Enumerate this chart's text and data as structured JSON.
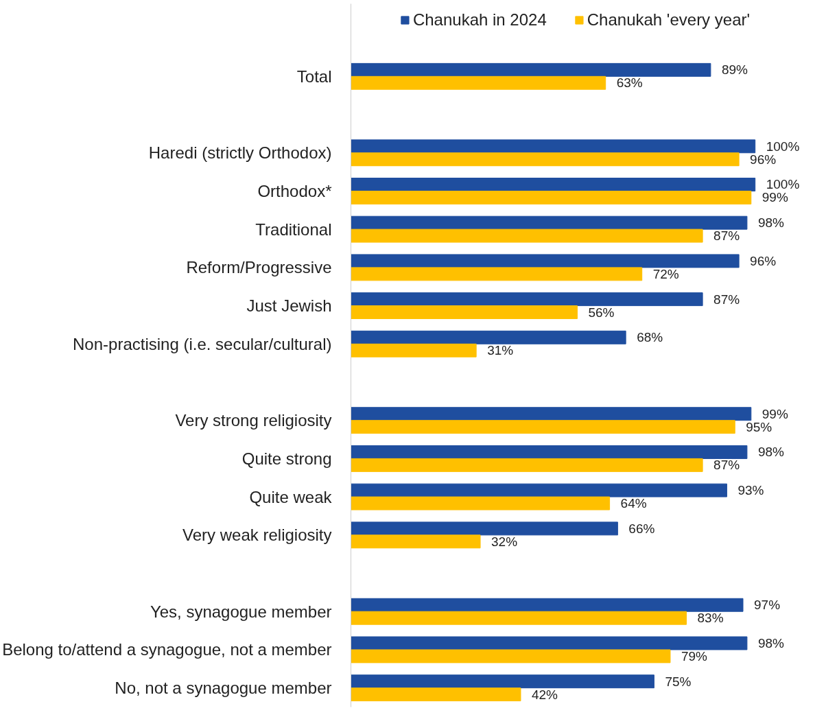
{
  "chart_data": {
    "type": "bar",
    "orientation": "horizontal",
    "legend": "top",
    "grid": false,
    "tick_labels": "y",
    "categories": [
      "Total",
      null,
      "Haredi (strictly Orthodox)",
      "Orthodox*",
      "Traditional",
      "Reform/Progressive",
      "Just Jewish",
      "Non-practising (i.e. secular/cultural)",
      null,
      "Very strong religiosity",
      "Quite strong",
      "Quite weak",
      "Very weak religiosity",
      null,
      "Yes, synagogue member",
      "Belong to/attend a synagogue, not a member",
      "No, not a synagogue member"
    ],
    "series": [
      {
        "name": "Chanukah in 2024",
        "color": "#1f4e9f",
        "values": [
          89,
          null,
          100,
          100,
          98,
          96,
          87,
          68,
          null,
          99,
          98,
          93,
          66,
          null,
          97,
          98,
          75
        ],
        "value_labels": [
          "89%",
          null,
          "100%",
          "100%",
          "98%",
          "96%",
          "87%",
          "68%",
          null,
          "99%",
          "98%",
          "93%",
          "66%",
          null,
          "97%",
          "98%",
          "75%"
        ]
      },
      {
        "name": "Chanukah 'every year'",
        "color": "#ffc000",
        "values": [
          63,
          null,
          96,
          99,
          87,
          72,
          56,
          31,
          null,
          95,
          87,
          64,
          32,
          null,
          83,
          79,
          42
        ],
        "value_labels": [
          "63%",
          null,
          "96%",
          "99%",
          "87%",
          "72%",
          "56%",
          "31%",
          null,
          "95%",
          "87%",
          "64%",
          "32%",
          null,
          "83%",
          "79%",
          "42%"
        ]
      }
    ]
  }
}
